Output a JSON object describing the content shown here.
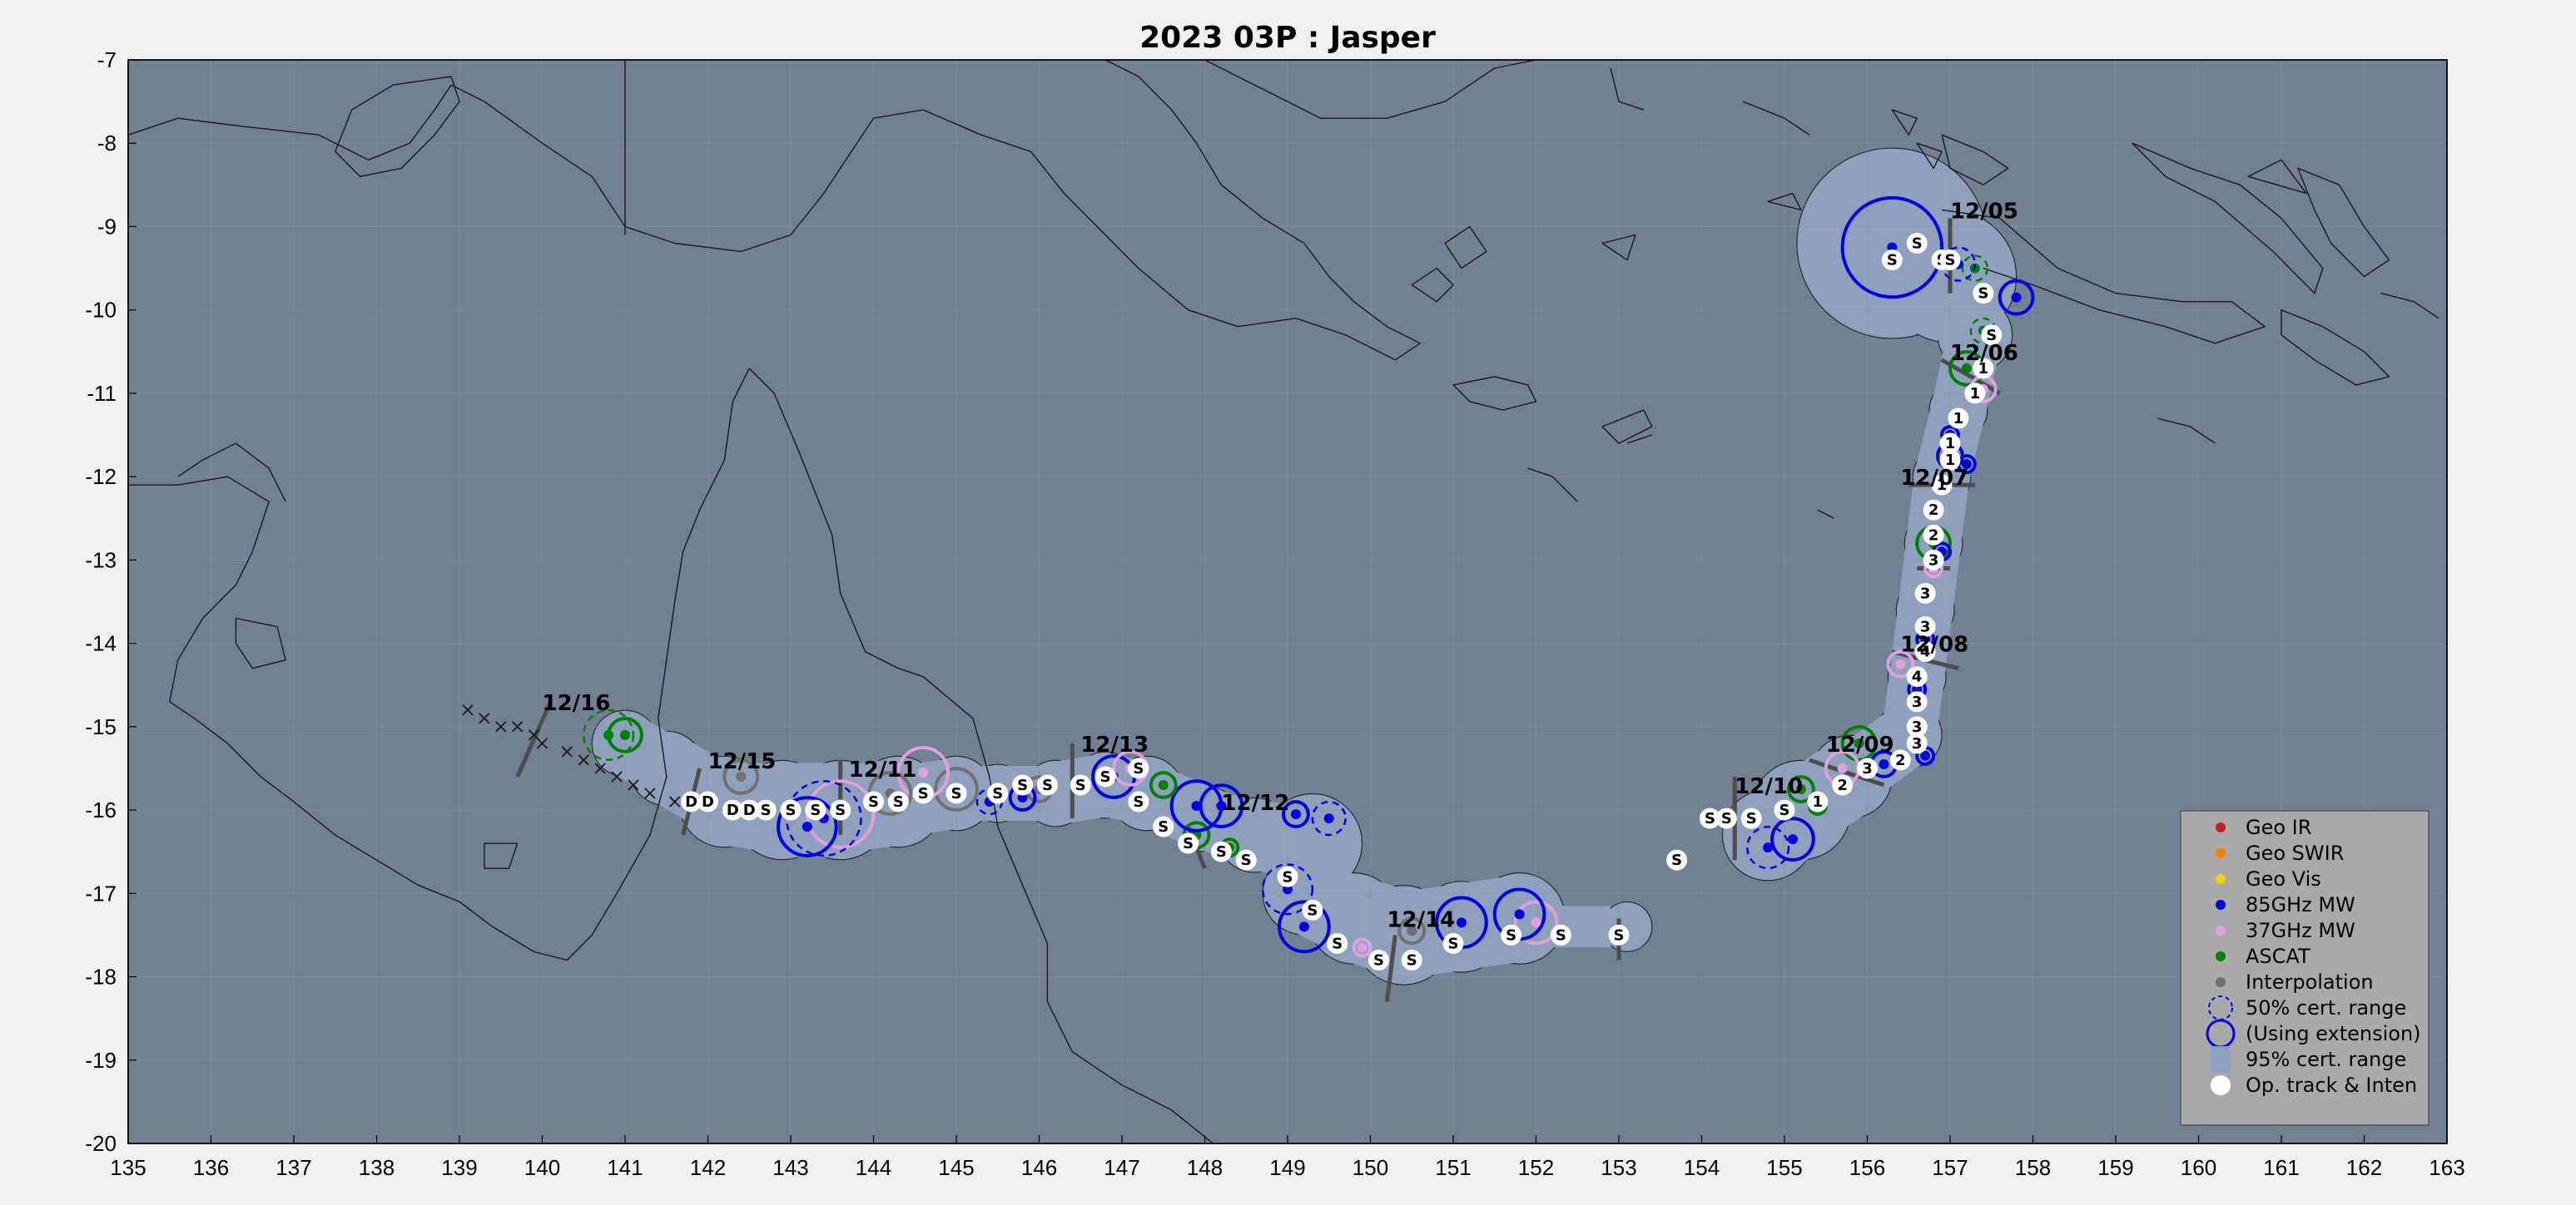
{
  "title": "2023  03P :  Jasper",
  "colors": {
    "figure_bg": "#f0f0f0",
    "ocean": "#718093",
    "land": "#718093",
    "coast": "#1a1a1a",
    "cone": "#8ea0bb",
    "grid": "#8a95a5",
    "geo_ir": "#c81e1e",
    "geo_swir": "#ff7f00",
    "geo_vis": "#f2d000",
    "mw85": "#0000e6",
    "mw37": "#e0a0e0",
    "ascat": "#008000",
    "interp": "#707070",
    "legend_bg": "#a9a9a9"
  },
  "chart_data": {
    "type": "scatter",
    "title": "2023  03P :  Jasper",
    "xlim": [
      135,
      163
    ],
    "ylim": [
      -20,
      -7
    ],
    "x_ticks": [
      "135",
      "136",
      "137",
      "138",
      "139",
      "140",
      "141",
      "142",
      "143",
      "144",
      "145",
      "146",
      "147",
      "148",
      "149",
      "150",
      "151",
      "152",
      "153",
      "154",
      "155",
      "156",
      "157",
      "158",
      "159",
      "160",
      "161",
      "162",
      "163"
    ],
    "y_ticks": [
      "-7",
      "-8",
      "-9",
      "-10",
      "-11",
      "-12",
      "-13",
      "-14",
      "-15",
      "-16",
      "-17",
      "-18",
      "-19",
      "-20"
    ],
    "grid": true,
    "legend_position": "bottom-right",
    "date_labels": [
      {
        "text": "12/05",
        "lon": 157.0,
        "lat": -8.9
      },
      {
        "text": "12/06",
        "lon": 157.0,
        "lat": -10.6
      },
      {
        "text": "12/07",
        "lon": 156.4,
        "lat": -12.1
      },
      {
        "text": "12/08",
        "lon": 156.4,
        "lat": -14.1
      },
      {
        "text": "12/09",
        "lon": 155.5,
        "lat": -15.3
      },
      {
        "text": "12/10",
        "lon": 154.4,
        "lat": -15.8
      },
      {
        "text": "12/12",
        "lon": 148.2,
        "lat": -16.0
      },
      {
        "text": "12/13",
        "lon": 146.5,
        "lat": -15.3
      },
      {
        "text": "12/14",
        "lon": 150.2,
        "lat": -17.4
      },
      {
        "text": "12/11",
        "lon": 143.7,
        "lat": -15.6
      },
      {
        "text": "12/15",
        "lon": 142.0,
        "lat": -15.5
      },
      {
        "text": "12/16",
        "lon": 140.0,
        "lat": -14.8
      }
    ],
    "op_track": [
      {
        "lon": 156.3,
        "lat": -9.4,
        "label": "S"
      },
      {
        "lon": 156.6,
        "lat": -9.2,
        "label": "S"
      },
      {
        "lon": 156.9,
        "lat": -9.4,
        "label": "S"
      },
      {
        "lon": 157.0,
        "lat": -9.4,
        "label": "S"
      },
      {
        "lon": 157.4,
        "lat": -9.8,
        "label": "S"
      },
      {
        "lon": 157.5,
        "lat": -10.3,
        "label": "S"
      },
      {
        "lon": 157.4,
        "lat": -10.7,
        "label": "1"
      },
      {
        "lon": 157.3,
        "lat": -11.0,
        "label": "1"
      },
      {
        "lon": 157.1,
        "lat": -11.3,
        "label": "1"
      },
      {
        "lon": 157.0,
        "lat": -11.6,
        "label": "1"
      },
      {
        "lon": 157.0,
        "lat": -11.8,
        "label": "1"
      },
      {
        "lon": 156.9,
        "lat": -12.1,
        "label": "1"
      },
      {
        "lon": 156.8,
        "lat": -12.4,
        "label": "2"
      },
      {
        "lon": 156.8,
        "lat": -12.7,
        "label": "2"
      },
      {
        "lon": 156.8,
        "lat": -13.0,
        "label": "3"
      },
      {
        "lon": 156.7,
        "lat": -13.4,
        "label": "3"
      },
      {
        "lon": 156.7,
        "lat": -13.8,
        "label": "3"
      },
      {
        "lon": 156.7,
        "lat": -14.1,
        "label": "4"
      },
      {
        "lon": 156.6,
        "lat": -14.4,
        "label": "4"
      },
      {
        "lon": 156.6,
        "lat": -14.7,
        "label": "3"
      },
      {
        "lon": 156.6,
        "lat": -15.0,
        "label": "3"
      },
      {
        "lon": 156.6,
        "lat": -15.2,
        "label": "3"
      },
      {
        "lon": 156.4,
        "lat": -15.4,
        "label": "2"
      },
      {
        "lon": 156.0,
        "lat": -15.5,
        "label": "3"
      },
      {
        "lon": 155.7,
        "lat": -15.7,
        "label": "2"
      },
      {
        "lon": 155.4,
        "lat": -15.9,
        "label": "1"
      },
      {
        "lon": 155.0,
        "lat": -16.0,
        "label": "S"
      },
      {
        "lon": 154.6,
        "lat": -16.1,
        "label": "S"
      },
      {
        "lon": 154.3,
        "lat": -16.1,
        "label": "S"
      },
      {
        "lon": 154.1,
        "lat": -16.1,
        "label": "S"
      },
      {
        "lon": 153.7,
        "lat": -16.6,
        "label": "S"
      },
      {
        "lon": 153.0,
        "lat": -17.5,
        "label": "S"
      },
      {
        "lon": 152.3,
        "lat": -17.5,
        "label": "S"
      },
      {
        "lon": 151.7,
        "lat": -17.5,
        "label": "S"
      },
      {
        "lon": 151.0,
        "lat": -17.6,
        "label": "S"
      },
      {
        "lon": 150.5,
        "lat": -17.8,
        "label": "S"
      },
      {
        "lon": 150.1,
        "lat": -17.8,
        "label": "S"
      },
      {
        "lon": 149.6,
        "lat": -17.6,
        "label": "S"
      },
      {
        "lon": 149.3,
        "lat": -17.2,
        "label": "S"
      },
      {
        "lon": 149.0,
        "lat": -16.8,
        "label": "S"
      },
      {
        "lon": 148.5,
        "lat": -16.6,
        "label": "S"
      },
      {
        "lon": 148.2,
        "lat": -16.5,
        "label": "S"
      },
      {
        "lon": 147.8,
        "lat": -16.4,
        "label": "S"
      },
      {
        "lon": 147.5,
        "lat": -16.2,
        "label": "S"
      },
      {
        "lon": 147.2,
        "lat": -15.9,
        "label": "S"
      },
      {
        "lon": 147.2,
        "lat": -15.5,
        "label": "S"
      },
      {
        "lon": 146.8,
        "lat": -15.6,
        "label": "S"
      },
      {
        "lon": 146.5,
        "lat": -15.7,
        "label": "S"
      },
      {
        "lon": 146.1,
        "lat": -15.7,
        "label": "S"
      },
      {
        "lon": 145.8,
        "lat": -15.7,
        "label": "S"
      },
      {
        "lon": 145.5,
        "lat": -15.8,
        "label": "S"
      },
      {
        "lon": 145.0,
        "lat": -15.8,
        "label": "S"
      },
      {
        "lon": 144.6,
        "lat": -15.8,
        "label": "S"
      },
      {
        "lon": 144.3,
        "lat": -15.9,
        "label": "S"
      },
      {
        "lon": 144.0,
        "lat": -15.9,
        "label": "S"
      },
      {
        "lon": 143.6,
        "lat": -16.0,
        "label": "S"
      },
      {
        "lon": 143.3,
        "lat": -16.0,
        "label": "S"
      },
      {
        "lon": 143.0,
        "lat": -16.0,
        "label": "S"
      },
      {
        "lon": 142.7,
        "lat": -16.0,
        "label": "S"
      },
      {
        "lon": 142.5,
        "lat": -16.0,
        "label": "D"
      },
      {
        "lon": 142.3,
        "lat": -16.0,
        "label": "D"
      },
      {
        "lon": 142.0,
        "lat": -15.9,
        "label": "D"
      },
      {
        "lon": 141.8,
        "lat": -15.9,
        "label": "D"
      }
    ],
    "decay_track": [
      {
        "lon": 139.1,
        "lat": -14.8
      },
      {
        "lon": 139.3,
        "lat": -14.9
      },
      {
        "lon": 139.5,
        "lat": -15.0
      },
      {
        "lon": 139.7,
        "lat": -15.0
      },
      {
        "lon": 139.9,
        "lat": -15.1
      },
      {
        "lon": 140.0,
        "lat": -15.2
      },
      {
        "lon": 140.3,
        "lat": -15.3
      },
      {
        "lon": 140.5,
        "lat": -15.4
      },
      {
        "lon": 140.7,
        "lat": -15.5
      },
      {
        "lon": 140.9,
        "lat": -15.6
      },
      {
        "lon": 141.1,
        "lat": -15.7
      },
      {
        "lon": 141.3,
        "lat": -15.8
      },
      {
        "lon": 141.6,
        "lat": -15.9
      }
    ],
    "fixes": [
      {
        "type": "mw85",
        "lon": 156.3,
        "lat": -9.25,
        "r50": 0.6
      },
      {
        "type": "mw85",
        "lon": 157.8,
        "lat": -9.85,
        "r50": 0.2
      },
      {
        "type": "ascat",
        "lon": 157.3,
        "lat": -9.5,
        "r50": 0.15,
        "dashed": true
      },
      {
        "type": "mw85",
        "lon": 157.1,
        "lat": -9.45,
        "r50": 0.2,
        "dashed": true
      },
      {
        "type": "ascat",
        "lon": 157.4,
        "lat": -10.25,
        "r50": 0.15,
        "dashed": true
      },
      {
        "type": "ascat",
        "lon": 157.2,
        "lat": -10.7,
        "r50": 0.2
      },
      {
        "type": "mw37",
        "lon": 157.4,
        "lat": -10.95,
        "r50": 0.15
      },
      {
        "type": "mw85",
        "lon": 157.0,
        "lat": -11.5,
        "r50": 0.1
      },
      {
        "type": "mw85",
        "lon": 157.0,
        "lat": -11.75,
        "r50": 0.15
      },
      {
        "type": "mw85",
        "lon": 157.2,
        "lat": -11.85,
        "r50": 0.1
      },
      {
        "type": "mw85",
        "lon": 156.8,
        "lat": -12.4,
        "r50": 0.1
      },
      {
        "type": "ascat",
        "lon": 156.8,
        "lat": -12.8,
        "r50": 0.2
      },
      {
        "type": "mw85",
        "lon": 156.9,
        "lat": -12.9,
        "r50": 0.1
      },
      {
        "type": "mw37",
        "lon": 156.8,
        "lat": -13.1,
        "r50": 0.1
      },
      {
        "type": "mw85",
        "lon": 156.7,
        "lat": -13.95,
        "r50": 0.1
      },
      {
        "type": "mw37",
        "lon": 156.4,
        "lat": -14.25,
        "r50": 0.15
      },
      {
        "type": "mw85",
        "lon": 156.6,
        "lat": -14.55,
        "r50": 0.1
      },
      {
        "type": "mw85",
        "lon": 156.7,
        "lat": -15.35,
        "r50": 0.1
      },
      {
        "type": "ascat",
        "lon": 155.9,
        "lat": -15.2,
        "r50": 0.2
      },
      {
        "type": "mw85",
        "lon": 156.2,
        "lat": -15.45,
        "r50": 0.15
      },
      {
        "type": "mw37",
        "lon": 155.7,
        "lat": -15.5,
        "r50": 0.2
      },
      {
        "type": "ascat",
        "lon": 155.2,
        "lat": -15.75,
        "r50": 0.15
      },
      {
        "type": "ascat",
        "lon": 155.4,
        "lat": -15.95,
        "r50": 0.1
      },
      {
        "type": "mw85",
        "lon": 155.1,
        "lat": -16.35,
        "r50": 0.25
      },
      {
        "type": "mw85",
        "lon": 154.8,
        "lat": -16.45,
        "r50": 0.25,
        "dashed": true
      },
      {
        "type": "mw37",
        "lon": 152.0,
        "lat": -17.35,
        "r50": 0.25
      },
      {
        "type": "mw85",
        "lon": 151.8,
        "lat": -17.25,
        "r50": 0.3
      },
      {
        "type": "mw85",
        "lon": 151.1,
        "lat": -17.35,
        "r50": 0.3
      },
      {
        "type": "interp",
        "lon": 150.5,
        "lat": -17.45,
        "r50": 0.15
      },
      {
        "type": "mw37",
        "lon": 149.9,
        "lat": -17.65,
        "r50": 0.1
      },
      {
        "type": "mw85",
        "lon": 149.2,
        "lat": -17.4,
        "r50": 0.3
      },
      {
        "type": "mw85",
        "lon": 149.0,
        "lat": -16.95,
        "r50": 0.3,
        "dashed": true
      },
      {
        "type": "mw85",
        "lon": 149.1,
        "lat": -16.05,
        "r50": 0.15
      },
      {
        "type": "mw85",
        "lon": 149.5,
        "lat": -16.1,
        "r50": 0.2,
        "dashed": true
      },
      {
        "type": "ascat",
        "lon": 148.3,
        "lat": -16.45,
        "r50": 0.1
      },
      {
        "type": "ascat",
        "lon": 147.9,
        "lat": -16.3,
        "r50": 0.15
      },
      {
        "type": "mw85",
        "lon": 147.9,
        "lat": -15.95,
        "r50": 0.3
      },
      {
        "type": "mw85",
        "lon": 148.2,
        "lat": -15.95,
        "r50": 0.25
      },
      {
        "type": "ascat",
        "lon": 147.5,
        "lat": -15.7,
        "r50": 0.15
      },
      {
        "type": "mw85",
        "lon": 146.9,
        "lat": -15.6,
        "r50": 0.25
      },
      {
        "type": "mw37",
        "lon": 147.1,
        "lat": -15.5,
        "r50": 0.2
      },
      {
        "type": "interp",
        "lon": 146.0,
        "lat": -15.75,
        "r50": 0.15
      },
      {
        "type": "mw85",
        "lon": 145.8,
        "lat": -15.85,
        "r50": 0.15
      },
      {
        "type": "mw85",
        "lon": 145.4,
        "lat": -15.9,
        "r50": 0.15,
        "dashed": true
      },
      {
        "type": "interp",
        "lon": 145.0,
        "lat": -15.75,
        "r50": 0.25
      },
      {
        "type": "mw37",
        "lon": 144.6,
        "lat": -15.55,
        "r50": 0.3
      },
      {
        "type": "interp",
        "lon": 144.2,
        "lat": -15.8,
        "r50": 0.25
      },
      {
        "type": "mw37",
        "lon": 143.6,
        "lat": -16.05,
        "r50": 0.4
      },
      {
        "type": "mw85",
        "lon": 143.2,
        "lat": -16.2,
        "r50": 0.35
      },
      {
        "type": "mw85",
        "lon": 143.4,
        "lat": -16.1,
        "r50": 0.45,
        "dashed": true
      },
      {
        "type": "interp",
        "lon": 142.4,
        "lat": -15.6,
        "r50": 0.2
      },
      {
        "type": "ascat",
        "lon": 141.0,
        "lat": -15.1,
        "r50": 0.2
      },
      {
        "type": "ascat",
        "lon": 140.8,
        "lat": -15.1,
        "r50": 0.3,
        "dashed": true
      }
    ]
  },
  "legend": {
    "items": [
      {
        "label": "Geo IR",
        "symbol": "dot",
        "color": "#c81e1e"
      },
      {
        "label": "Geo SWIR",
        "symbol": "dot",
        "color": "#ff7f00"
      },
      {
        "label": "Geo Vis",
        "symbol": "dot",
        "color": "#f2d000"
      },
      {
        "label": "85GHz MW",
        "symbol": "dot",
        "color": "#0000e6"
      },
      {
        "label": "37GHz MW",
        "symbol": "dot",
        "color": "#e0a0e0"
      },
      {
        "label": "ASCAT",
        "symbol": "dot",
        "color": "#008000"
      },
      {
        "label": "Interpolation",
        "symbol": "dot",
        "color": "#707070"
      },
      {
        "label": "50% cert. range",
        "symbol": "dashed-circle",
        "color": "#0000e6"
      },
      {
        "label": "(Using extension)",
        "symbol": "circle",
        "color": "#0000e6"
      },
      {
        "label": "95% cert. range",
        "symbol": "rect",
        "color": "#8ea0bb"
      },
      {
        "label": "Op. track & Inten",
        "symbol": "white-dot",
        "color": "#ffffff"
      }
    ]
  }
}
